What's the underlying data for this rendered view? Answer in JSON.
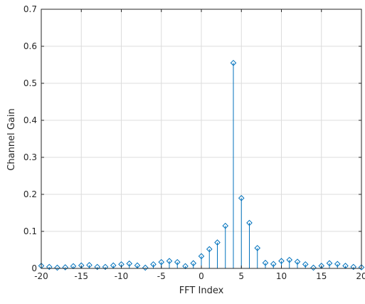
{
  "chart_data": {
    "type": "stem",
    "xlabel": "FFT Index",
    "ylabel": "Channel Gain",
    "xlim": [
      -20,
      20
    ],
    "ylim": [
      0,
      0.7
    ],
    "xticks": [
      -20,
      -15,
      -10,
      -5,
      0,
      5,
      10,
      15,
      20
    ],
    "yticks": [
      0,
      0.1,
      0.2,
      0.3,
      0.4,
      0.5,
      0.6,
      0.7
    ],
    "grid": true,
    "colors": {
      "series": "#0072BD",
      "grid": "#dcdcdc",
      "axis": "#262626"
    },
    "series": [
      {
        "marker": "diamond",
        "x": [
          -20,
          -19,
          -18,
          -17,
          -16,
          -15,
          -14,
          -13,
          -12,
          -11,
          -10,
          -9,
          -8,
          -7,
          -6,
          -5,
          -4,
          -3,
          -2,
          -1,
          0,
          1,
          2,
          3,
          4,
          5,
          6,
          7,
          8,
          9,
          10,
          11,
          12,
          13,
          14,
          15,
          16,
          17,
          18,
          19,
          20
        ],
        "y": [
          0.007,
          0.004,
          0.002,
          0.003,
          0.006,
          0.008,
          0.009,
          0.004,
          0.004,
          0.008,
          0.011,
          0.013,
          0.008,
          0.002,
          0.011,
          0.017,
          0.02,
          0.017,
          0.006,
          0.014,
          0.033,
          0.052,
          0.07,
          0.115,
          0.555,
          0.19,
          0.123,
          0.055,
          0.015,
          0.012,
          0.02,
          0.023,
          0.018,
          0.011,
          0.002,
          0.007,
          0.014,
          0.012,
          0.007,
          0.004,
          0.003
        ]
      }
    ]
  }
}
